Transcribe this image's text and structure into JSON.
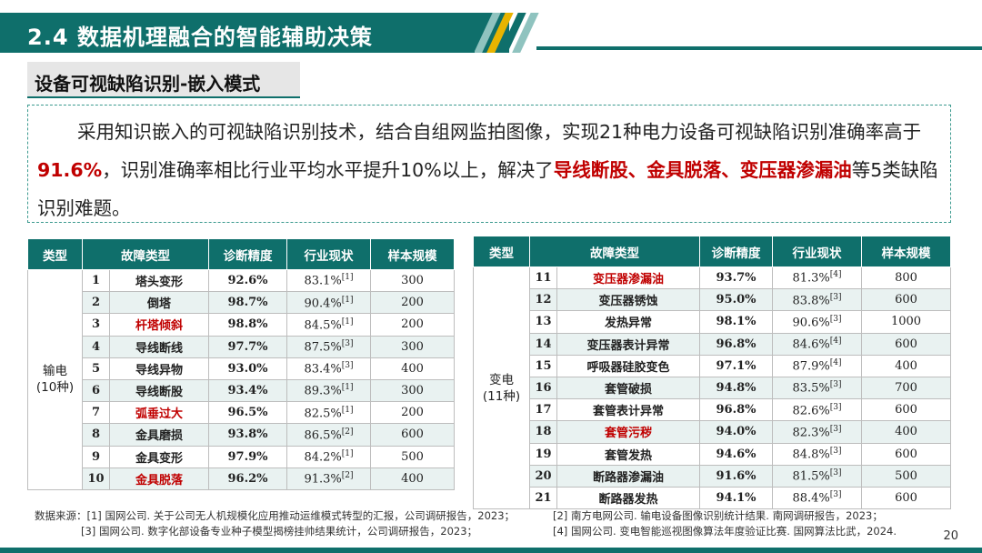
{
  "header": {
    "title": "2.4 数据机理融合的智能辅助决策"
  },
  "subtitle": "设备可视缺陷识别-嵌入模式",
  "paragraph": {
    "p1": "采用知识嵌入的可视缺陷识别技术，结合自组网监拍图像，实现21种电力设备可视缺陷识别准确率高于",
    "hl1": "91.6%",
    "p2": "，识别准确率相比行业平均水平提升10%以上，解决了",
    "hl2": "导线断股、金具脱落、变压器渗漏油",
    "p3": "等5类缺陷识别难题。"
  },
  "table_headers": [
    "类型",
    "故障类型",
    "诊断精度",
    "行业现状",
    "样本规模"
  ],
  "table1": {
    "category": "输电\n(10种)",
    "rows": [
      {
        "no": "1",
        "name": "塔头变形",
        "acc": "92.6%",
        "cur": "83.1%",
        "ref": "[1]",
        "size": "300",
        "hl": false
      },
      {
        "no": "2",
        "name": "倒塔",
        "acc": "98.7%",
        "cur": "90.4%",
        "ref": "[1]",
        "size": "200",
        "hl": false
      },
      {
        "no": "3",
        "name": "杆塔倾斜",
        "acc": "98.8%",
        "cur": "84.5%",
        "ref": "[1]",
        "size": "200",
        "hl": true
      },
      {
        "no": "4",
        "name": "导线断线",
        "acc": "97.7%",
        "cur": "87.5%",
        "ref": "[3]",
        "size": "300",
        "hl": false
      },
      {
        "no": "5",
        "name": "导线异物",
        "acc": "93.0%",
        "cur": "83.4%",
        "ref": "[3]",
        "size": "400",
        "hl": false
      },
      {
        "no": "6",
        "name": "导线断股",
        "acc": "93.4%",
        "cur": "89.3%",
        "ref": "[1]",
        "size": "300",
        "hl": false
      },
      {
        "no": "7",
        "name": "弧垂过大",
        "acc": "96.5%",
        "cur": "82.5%",
        "ref": "[1]",
        "size": "200",
        "hl": true
      },
      {
        "no": "8",
        "name": "金具磨损",
        "acc": "93.8%",
        "cur": "86.5%",
        "ref": "[2]",
        "size": "600",
        "hl": false
      },
      {
        "no": "9",
        "name": "金具变形",
        "acc": "97.9%",
        "cur": "84.2%",
        "ref": "[1]",
        "size": "500",
        "hl": false
      },
      {
        "no": "10",
        "name": "金具脱落",
        "acc": "96.2%",
        "cur": "91.3%",
        "ref": "[2]",
        "size": "400",
        "hl": true
      }
    ]
  },
  "table2": {
    "category": "变电\n(11种)",
    "rows": [
      {
        "no": "11",
        "name": "变压器渗漏油",
        "acc": "93.7%",
        "cur": "81.3%",
        "ref": "[4]",
        "size": "800",
        "hl": true
      },
      {
        "no": "12",
        "name": "变压器锈蚀",
        "acc": "95.0%",
        "cur": "83.8%",
        "ref": "[3]",
        "size": "600",
        "hl": false
      },
      {
        "no": "13",
        "name": "发热异常",
        "acc": "98.1%",
        "cur": "90.6%",
        "ref": "[3]",
        "size": "1000",
        "hl": false
      },
      {
        "no": "14",
        "name": "变压器表计异常",
        "acc": "96.8%",
        "cur": "84.6%",
        "ref": "[4]",
        "size": "600",
        "hl": false
      },
      {
        "no": "15",
        "name": "呼吸器硅胶变色",
        "acc": "97.1%",
        "cur": "87.9%",
        "ref": "[4]",
        "size": "400",
        "hl": false
      },
      {
        "no": "16",
        "name": "套管破损",
        "acc": "94.8%",
        "cur": "83.5%",
        "ref": "[3]",
        "size": "700",
        "hl": false
      },
      {
        "no": "17",
        "name": "套管表计异常",
        "acc": "96.8%",
        "cur": "82.6%",
        "ref": "[3]",
        "size": "600",
        "hl": false
      },
      {
        "no": "18",
        "name": "套管污秽",
        "acc": "94.0%",
        "cur": "82.3%",
        "ref": "[3]",
        "size": "400",
        "hl": true
      },
      {
        "no": "19",
        "name": "套管发热",
        "acc": "94.6%",
        "cur": "84.8%",
        "ref": "[3]",
        "size": "600",
        "hl": false
      },
      {
        "no": "20",
        "name": "断路器渗漏油",
        "acc": "91.6%",
        "cur": "81.5%",
        "ref": "[3]",
        "size": "500",
        "hl": false
      },
      {
        "no": "21",
        "name": "断路器发热",
        "acc": "94.1%",
        "cur": "88.4%",
        "ref": "[3]",
        "size": "600",
        "hl": false
      }
    ]
  },
  "footnote": {
    "r1c1": "数据来源：[1] 国网公司. 关于公司无人机规模化应用推动运维模式转型的汇报，公司调研报告，2023；",
    "r1c2": "[2] 南方电网公司.  输电设备图像识别统计结果.  南网调研报告，2023；",
    "r2c1": "[3] 国网公司. 数字化部设备专业种子模型揭榜挂帅结果统计，公司调研报告，2023；",
    "r2c2": "[4] 国网公司.  变电智能巡视图像算法年度验证比赛.  国网算法比武，2024."
  },
  "page_number": "20",
  "colors": {
    "primary": "#0f6f6b",
    "highlight": "#c00000",
    "stripe_light": "#8fc3bf",
    "stripe_yellow": "#e8b400"
  }
}
